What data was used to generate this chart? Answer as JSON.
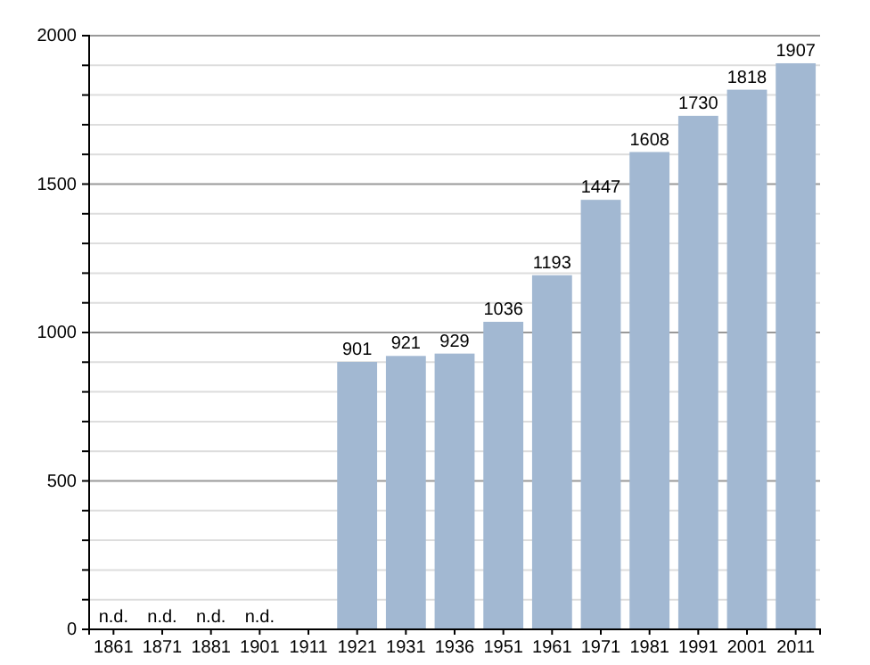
{
  "chart_data": {
    "type": "bar",
    "categories": [
      "1861",
      "1871",
      "1881",
      "1901",
      "1911",
      "1921",
      "1931",
      "1936",
      "1951",
      "1961",
      "1971",
      "1981",
      "1991",
      "2001",
      "2011"
    ],
    "values": [
      null,
      null,
      null,
      null,
      null,
      901,
      921,
      929,
      1036,
      1193,
      1447,
      1608,
      1730,
      1818,
      1907
    ],
    "value_labels": [
      "n.d.",
      "n.d.",
      "n.d.",
      "n.d.",
      null,
      "901",
      "921",
      "929",
      "1036",
      "1193",
      "1447",
      "1608",
      "1730",
      "1818",
      "1907"
    ],
    "color": "#a2b8d2",
    "ylim": [
      0,
      2000
    ],
    "yticks": [
      0,
      {
        "value": 100,
        "label": null
      },
      {
        "value": 200,
        "label": null
      },
      {
        "value": 300,
        "label": null
      },
      {
        "value": 400,
        "label": null
      },
      500,
      {
        "value": 600,
        "label": null
      },
      {
        "value": 700,
        "label": null
      },
      {
        "value": 800,
        "label": null
      },
      {
        "value": 900,
        "label": null
      },
      1000,
      {
        "value": 1100,
        "label": null
      },
      {
        "value": 1200,
        "label": null
      },
      {
        "value": 1300,
        "label": null
      },
      {
        "value": 1400,
        "label": null
      },
      1500,
      {
        "value": 1600,
        "label": null
      },
      {
        "value": 1700,
        "label": null
      },
      {
        "value": 1800,
        "label": null
      },
      {
        "value": 1900,
        "label": null
      },
      2000
    ],
    "grid": true
  }
}
